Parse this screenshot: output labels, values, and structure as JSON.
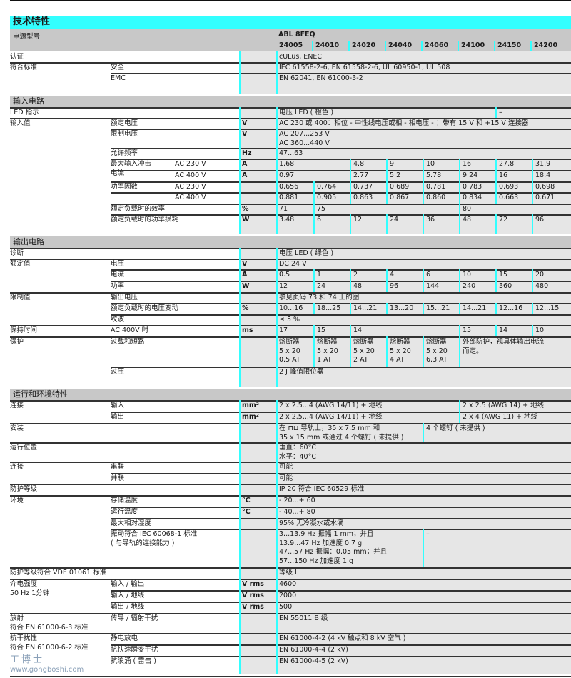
{
  "title": "技术特性",
  "header": {
    "label": "电源型号",
    "series": "ABL 8FEQ",
    "models": [
      "24005",
      "24010",
      "24020",
      "24040",
      "24060",
      "24100",
      "24150",
      "24200"
    ]
  },
  "accent_color": "#33ffff",
  "rows": [
    {
      "l1": "认证",
      "cells": [
        {
          "t": "cULus, ENEC",
          "s": 8
        }
      ]
    },
    {
      "l1": "符合标准",
      "l2": "安全",
      "cells": [
        {
          "t": "IEC 61558-2-6, EN 61558-2-6, UL 60950-1, UL 508",
          "s": 8
        }
      ]
    },
    {
      "l2": "EMC",
      "cells": [
        {
          "t": "EN 62041, EN 61000-3-2",
          "s": 8
        }
      ]
    },
    {
      "section": "输入电路"
    },
    {
      "l1": "LED 指示",
      "cells": [
        {
          "t": "电压 LED ( 橙色 )",
          "s": 6
        },
        {
          "t": "–",
          "s": 2
        }
      ]
    },
    {
      "l1": "输入值",
      "l2": "额定电压",
      "unit": "V",
      "cells": [
        {
          "t": "AC 230 或 400：相位 - 中性线电压或相 - 相电压 - ；带有 15 V 和 +15 V 连接器",
          "s": 8
        }
      ]
    },
    {
      "l2": "限制电压",
      "unit": "V",
      "cells": [
        {
          "t": "AC 207...253 V\nAC 360...440 V",
          "s": 8
        }
      ]
    },
    {
      "l2": "允许频率",
      "unit": "Hz",
      "cells": [
        {
          "t": "47...63",
          "s": 8
        }
      ]
    },
    {
      "l2": "最大输入冲击\n电流",
      "l3": "AC 230 V",
      "unit": "A",
      "cells": [
        {
          "t": "1.68",
          "s": 2
        },
        {
          "t": "4.8",
          "s": 1
        },
        {
          "t": "9",
          "s": 1
        },
        {
          "t": "10",
          "s": 1
        },
        {
          "t": "16",
          "s": 1
        },
        {
          "t": "27.8",
          "s": 1
        },
        {
          "t": "31.9",
          "s": 1
        }
      ]
    },
    {
      "l3": "AC 400 V",
      "unit": "A",
      "cells": [
        {
          "t": "0.97",
          "s": 2
        },
        {
          "t": "2.77",
          "s": 1
        },
        {
          "t": "5.2",
          "s": 1
        },
        {
          "t": "5.78",
          "s": 1
        },
        {
          "t": "9.24",
          "s": 1
        },
        {
          "t": "16",
          "s": 1
        },
        {
          "t": "18.4",
          "s": 1
        }
      ]
    },
    {
      "l2": "功率因数",
      "l3": "AC 230 V",
      "cells": [
        {
          "t": "0.656",
          "s": 1
        },
        {
          "t": "0.764",
          "s": 1
        },
        {
          "t": "0.737",
          "s": 1
        },
        {
          "t": "0.689",
          "s": 1
        },
        {
          "t": "0.781",
          "s": 1
        },
        {
          "t": "0.783",
          "s": 1
        },
        {
          "t": "0.693",
          "s": 1
        },
        {
          "t": "0.698",
          "s": 1
        }
      ]
    },
    {
      "l3": "AC 400 V",
      "cells": [
        {
          "t": "0.881",
          "s": 1
        },
        {
          "t": "0.905",
          "s": 1
        },
        {
          "t": "0.863",
          "s": 1
        },
        {
          "t": "0.867",
          "s": 1
        },
        {
          "t": "0.860",
          "s": 1
        },
        {
          "t": "0.834",
          "s": 1
        },
        {
          "t": "0.663",
          "s": 1
        },
        {
          "t": "0.671",
          "s": 1
        }
      ]
    },
    {
      "l2": "额定负载时的效率",
      "unit": "%",
      "cells": [
        {
          "t": "71",
          "s": 1
        },
        {
          "t": "75",
          "s": 4
        },
        {
          "t": "80",
          "s": 3
        }
      ]
    },
    {
      "l2": "额定负载时的功率损耗",
      "unit": "W",
      "cells": [
        {
          "t": "3.48",
          "s": 1
        },
        {
          "t": "6",
          "s": 1
        },
        {
          "t": "12",
          "s": 1
        },
        {
          "t": "24",
          "s": 1
        },
        {
          "t": "36",
          "s": 1
        },
        {
          "t": "48",
          "s": 1
        },
        {
          "t": "72",
          "s": 1
        },
        {
          "t": "96",
          "s": 1
        }
      ]
    },
    {
      "section": "输出电路"
    },
    {
      "l1": "诊断",
      "cells": [
        {
          "t": "电压 LED ( 绿色 )",
          "s": 8
        }
      ]
    },
    {
      "l1": "额定值",
      "l2": "电压",
      "unit": "V",
      "cells": [
        {
          "t": "DC 24 V",
          "s": 8
        }
      ]
    },
    {
      "l2": "电流",
      "unit": "A",
      "cells": [
        {
          "t": "0.5",
          "s": 1
        },
        {
          "t": "1",
          "s": 1
        },
        {
          "t": "2",
          "s": 1
        },
        {
          "t": "4",
          "s": 1
        },
        {
          "t": "6",
          "s": 1
        },
        {
          "t": "10",
          "s": 1
        },
        {
          "t": "15",
          "s": 1
        },
        {
          "t": "20",
          "s": 1
        }
      ]
    },
    {
      "l2": "功率",
      "unit": "W",
      "cells": [
        {
          "t": "12",
          "s": 1
        },
        {
          "t": "24",
          "s": 1
        },
        {
          "t": "48",
          "s": 1
        },
        {
          "t": "96",
          "s": 1
        },
        {
          "t": "144",
          "s": 1
        },
        {
          "t": "240",
          "s": 1
        },
        {
          "t": "360",
          "s": 1
        },
        {
          "t": "480",
          "s": 1
        }
      ]
    },
    {
      "l1": "限制值",
      "l2": "输出电压",
      "cells": [
        {
          "t": "参见页码 73 和 74 上的图",
          "s": 8
        }
      ]
    },
    {
      "l2": "额定负载时的电压变动",
      "unit": "%",
      "cells": [
        {
          "t": "10...16",
          "s": 1
        },
        {
          "t": "18...25",
          "s": 1
        },
        {
          "t": "14...21",
          "s": 1
        },
        {
          "t": "13...20",
          "s": 1
        },
        {
          "t": "15...21",
          "s": 1
        },
        {
          "t": "14...21",
          "s": 1
        },
        {
          "t": "12...16",
          "s": 1
        },
        {
          "t": "12...15",
          "s": 1
        }
      ]
    },
    {
      "l2": "纹波",
      "cells": [
        {
          "t": "≤ 5 %",
          "s": 8
        }
      ]
    },
    {
      "l1": "保持时间",
      "l2": "AC 400V 时",
      "unit": "ms",
      "cells": [
        {
          "t": "17",
          "s": 1
        },
        {
          "t": "15",
          "s": 1
        },
        {
          "t": "14",
          "s": 3
        },
        {
          "t": "15",
          "s": 1
        },
        {
          "t": "14",
          "s": 1
        },
        {
          "t": "10",
          "s": 1
        }
      ]
    },
    {
      "l1": "保护",
      "l2": "过载和短路",
      "cells": [
        {
          "t": "熔断器\n5 x 20\n0.5 AT",
          "s": 1
        },
        {
          "t": "熔断器\n5 x 20\n1 AT",
          "s": 1
        },
        {
          "t": "熔断器\n5 x 20\n2 AT",
          "s": 1
        },
        {
          "t": "熔断器\n5 x 20\n4 AT",
          "s": 1
        },
        {
          "t": "熔断器\n5 x 20\n6.3 AT",
          "s": 1
        },
        {
          "t": "外部防护，视具体输出电流\n而定。",
          "s": 3
        }
      ]
    },
    {
      "l2": "过压",
      "cells": [
        {
          "t": "2 J 峰值限位器",
          "s": 8
        }
      ]
    },
    {
      "section": "运行和环境特性"
    },
    {
      "l1": "连接",
      "l2": "输入",
      "unit": "mm²",
      "cells": [
        {
          "t": "2 x 2.5...4 (AWG 14/11) + 地线",
          "s": 5
        },
        {
          "t": "2 x 2.5 (AWG 14) + 地线",
          "s": 3
        }
      ]
    },
    {
      "l2": "输出",
      "unit": "mm²",
      "cells": [
        {
          "t": "2 x 2.5...4 (AWG 14/11) + 地线",
          "s": 5
        },
        {
          "t": "2 x 4 (AWG 11) + 地线",
          "s": 3
        }
      ]
    },
    {
      "l1": "安装",
      "cells": [
        {
          "t": "在 ⊓⊔ 导轨上，35 x 7.5 mm 和\n35 x 15 mm 或通过 4 个螺钉 ( 未提供 )",
          "s": 4
        },
        {
          "t": "4 个螺钉 ( 未提供 )",
          "s": 4
        }
      ]
    },
    {
      "l1": "运行位置",
      "cells": [
        {
          "t": "垂直：60°C\n水平：40°C",
          "s": 8
        }
      ]
    },
    {
      "l1": "连接",
      "l2": "串联",
      "cells": [
        {
          "t": "可能",
          "s": 8
        }
      ]
    },
    {
      "l2": "并联",
      "cells": [
        {
          "t": "可能",
          "s": 8
        }
      ]
    },
    {
      "l1": "防护等级",
      "cells": [
        {
          "t": "IP 20 符合 IEC 60529 标准",
          "s": 8
        }
      ]
    },
    {
      "l1": "环境",
      "l2": "存储温度",
      "unit": "°C",
      "cells": [
        {
          "t": "- 20...+ 60",
          "s": 8
        }
      ]
    },
    {
      "l2": "运行温度",
      "unit": "°C",
      "cells": [
        {
          "t": "- 40...+ 80",
          "s": 8
        }
      ]
    },
    {
      "l2": "最大相对湿度",
      "cells": [
        {
          "t": "95% 无冷凝水或水滴",
          "s": 8
        }
      ]
    },
    {
      "l2": "振动符合 IEC 60068-1 标准\n( 与导轨的连接能力 )",
      "cells": [
        {
          "t": "3...13.9 Hz 振幅 1 mm；并且\n13.9...47 Hz 加速度 0.7 g\n47...57 Hz 振幅：0.05 mm；并且\n57...150 Hz 加速度 1 g",
          "s": 4
        },
        {
          "t": "–",
          "s": 4
        }
      ]
    },
    {
      "l1": "防护等级符合 VDE 01061 标准",
      "cells": [
        {
          "t": "等级 I",
          "s": 8
        }
      ]
    },
    {
      "l1": "介电强度\n50 Hz 1分钟",
      "l2": "输入 / 输出",
      "unit": "V rms",
      "cells": [
        {
          "t": "4600",
          "s": 8
        }
      ]
    },
    {
      "l2": "输入 / 地线",
      "unit": "V rms",
      "cells": [
        {
          "t": "2000",
          "s": 8
        }
      ]
    },
    {
      "l2": "输出 / 地线",
      "unit": "V rms",
      "cells": [
        {
          "t": "500",
          "s": 8
        }
      ]
    },
    {
      "l1": "放射\n符合 EN 61000-6-3 标准",
      "l2": "传导 / 辐射干扰",
      "cells": [
        {
          "t": "EN 55011 B 级",
          "s": 8
        }
      ]
    },
    {
      "l1": "抗干扰性\n符合 EN 61000-6-2 标准",
      "l2": "静电放电",
      "cells": [
        {
          "t": "EN 61000-4-2 (4 kV 触点和 8 kV 空气 )",
          "s": 8
        }
      ]
    },
    {
      "l2": "抗快速瞬变干扰",
      "cells": [
        {
          "t": "EN 61000-4-4 (2 kV)",
          "s": 8
        }
      ]
    },
    {
      "l2": "抗浪涌 ( 雷击 )",
      "cells": [
        {
          "t": "EN 61000-4-5 (2 kV)",
          "s": 8
        }
      ]
    }
  ],
  "watermark": {
    "logo": "工博士",
    "url": "www.gongboshi.com"
  }
}
